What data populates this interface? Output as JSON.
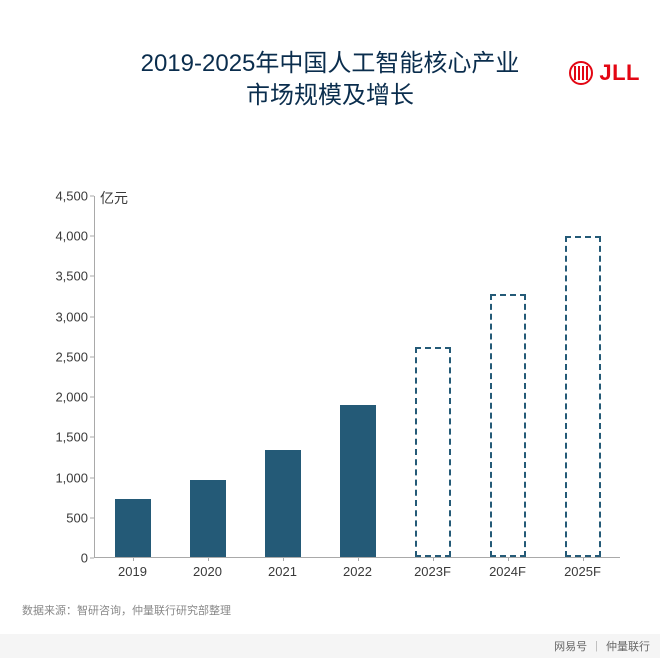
{
  "brand": {
    "name": "JLL",
    "logo_color": "#e30613"
  },
  "chart": {
    "type": "bar",
    "title_line1": "2019-2025年中国人工智能核心产业",
    "title_line2": "市场规模及增长",
    "title_fontsize": 24,
    "title_color": "#0a2d4d",
    "unit_label": "亿元",
    "categories": [
      "2019",
      "2020",
      "2021",
      "2022",
      "2023F",
      "2024F",
      "2025F"
    ],
    "values": [
      720,
      960,
      1330,
      1900,
      2620,
      3280,
      4000
    ],
    "forecast_flags": [
      false,
      false,
      false,
      false,
      true,
      true,
      true
    ],
    "bar_color": "#245a77",
    "forecast_border": "dashed",
    "ylim": [
      0,
      4500
    ],
    "ytick_step": 500,
    "axis_color": "#a9a9a9",
    "tick_font_size": 13,
    "tick_color": "#3a3a3a",
    "background_color": "#ffffff",
    "bar_width_ratio": 0.48
  },
  "source_note": "数据来源：智研咨询，仲量联行研究部整理",
  "footer": {
    "left": "网易号",
    "right": "仲量联行"
  }
}
